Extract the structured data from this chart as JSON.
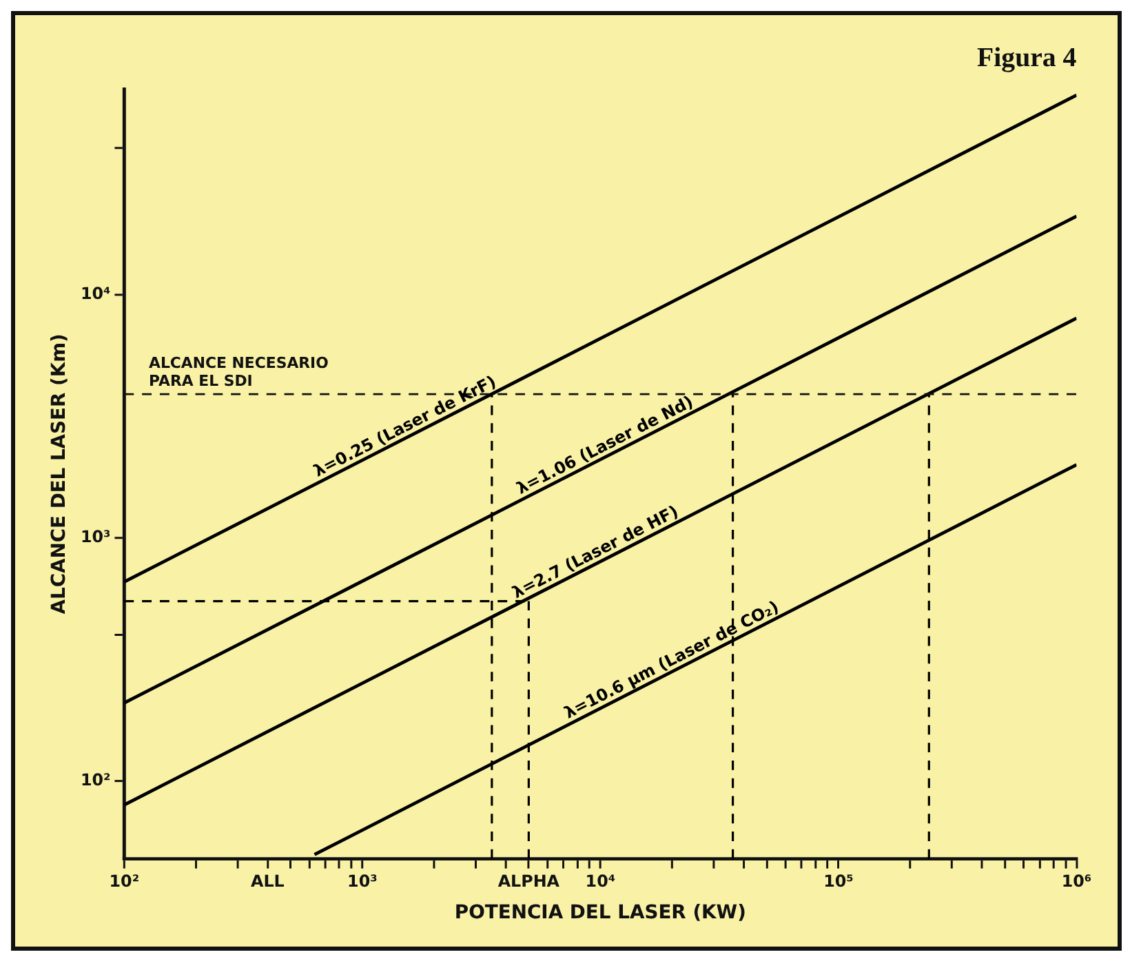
{
  "chart_data": {
    "type": "line",
    "title": "Figura 4",
    "xlabel": "POTENCIA DEL LASER (KW)",
    "ylabel": "ALCANCE DEL LASER (Km)",
    "log": "xy",
    "xlim": [
      100,
      1000000
    ],
    "ylim": [
      48,
      70000
    ],
    "xticks": [
      {
        "value": 100,
        "label": "10²"
      },
      {
        "value": 200,
        "label": null
      },
      {
        "value": 300,
        "label": null
      },
      {
        "value": 400,
        "label": "ALL"
      },
      {
        "value": 500,
        "label": null
      },
      {
        "value": 600,
        "label": null
      },
      {
        "value": 700,
        "label": null
      },
      {
        "value": 800,
        "label": null
      },
      {
        "value": 900,
        "label": null
      },
      {
        "value": 1000,
        "label": "10³"
      },
      {
        "value": 2000,
        "label": null
      },
      {
        "value": 3000,
        "label": null
      },
      {
        "value": 4000,
        "label": null
      },
      {
        "value": 5000,
        "label": "ALPHA"
      },
      {
        "value": 6000,
        "label": null
      },
      {
        "value": 7000,
        "label": null
      },
      {
        "value": 8000,
        "label": null
      },
      {
        "value": 9000,
        "label": null
      },
      {
        "value": 10000,
        "label": "10⁴"
      },
      {
        "value": 20000,
        "label": null
      },
      {
        "value": 30000,
        "label": null
      },
      {
        "value": 40000,
        "label": null
      },
      {
        "value": 50000,
        "label": null
      },
      {
        "value": 60000,
        "label": null
      },
      {
        "value": 70000,
        "label": null
      },
      {
        "value": 80000,
        "label": null
      },
      {
        "value": 90000,
        "label": null
      },
      {
        "value": 100000,
        "label": "10⁵"
      },
      {
        "value": 200000,
        "label": null
      },
      {
        "value": 300000,
        "label": null
      },
      {
        "value": 400000,
        "label": null
      },
      {
        "value": 500000,
        "label": null
      },
      {
        "value": 600000,
        "label": null
      },
      {
        "value": 700000,
        "label": null
      },
      {
        "value": 800000,
        "label": null
      },
      {
        "value": 900000,
        "label": null
      },
      {
        "value": 1000000,
        "label": "10⁶"
      }
    ],
    "yticks": [
      {
        "value": 100,
        "label": "10²"
      },
      {
        "value": 400,
        "label": null
      },
      {
        "value": 1000,
        "label": "10³"
      },
      {
        "value": 10000,
        "label": "10⁴"
      },
      {
        "value": 40000,
        "label": null
      }
    ],
    "series": [
      {
        "name": "λ=0.25 (Laser de KrF)",
        "color": "#000000",
        "x": [
          100,
          1000000
        ],
        "values": [
          660,
          66000
        ]
      },
      {
        "name": "λ=1.06 (Laser de Nd)",
        "color": "#000000",
        "x": [
          100,
          1000000
        ],
        "values": [
          210,
          21000
        ]
      },
      {
        "name": "λ=2.7 (Laser de HF)",
        "color": "#000000",
        "x": [
          100,
          1000000
        ],
        "values": [
          80,
          8000
        ]
      },
      {
        "name": "λ=10.6 µm (Laser de CO₂)",
        "color": "#000000",
        "x": [
          630,
          1000000
        ],
        "values": [
          50,
          2000
        ]
      },
      {
        "color": "#000000",
        "line_style": "dashed",
        "x": [
          100,
          5000
        ],
        "values": [
          550,
          550
        ]
      },
      {
        "color": "#000000",
        "line_style": "dashed",
        "x": [
          5000,
          5000
        ],
        "values": [
          48,
          550
        ]
      },
      {
        "color": "#000000",
        "line_style": "dashed",
        "x": [
          3500,
          3500
        ],
        "values": [
          48,
          3900
        ]
      },
      {
        "color": "#000000",
        "line_style": "dashed",
        "x": [
          36000,
          36000
        ],
        "values": [
          48,
          3900
        ]
      },
      {
        "color": "#000000",
        "line_style": "dashed",
        "x": [
          240000,
          240000
        ],
        "values": [
          48,
          3900
        ]
      }
    ],
    "ref_lines": [
      {
        "axis": "y",
        "value": 3900,
        "label": "ALCANCE NECESARIO PARA EL SDI",
        "line_style": "dashed"
      }
    ]
  }
}
